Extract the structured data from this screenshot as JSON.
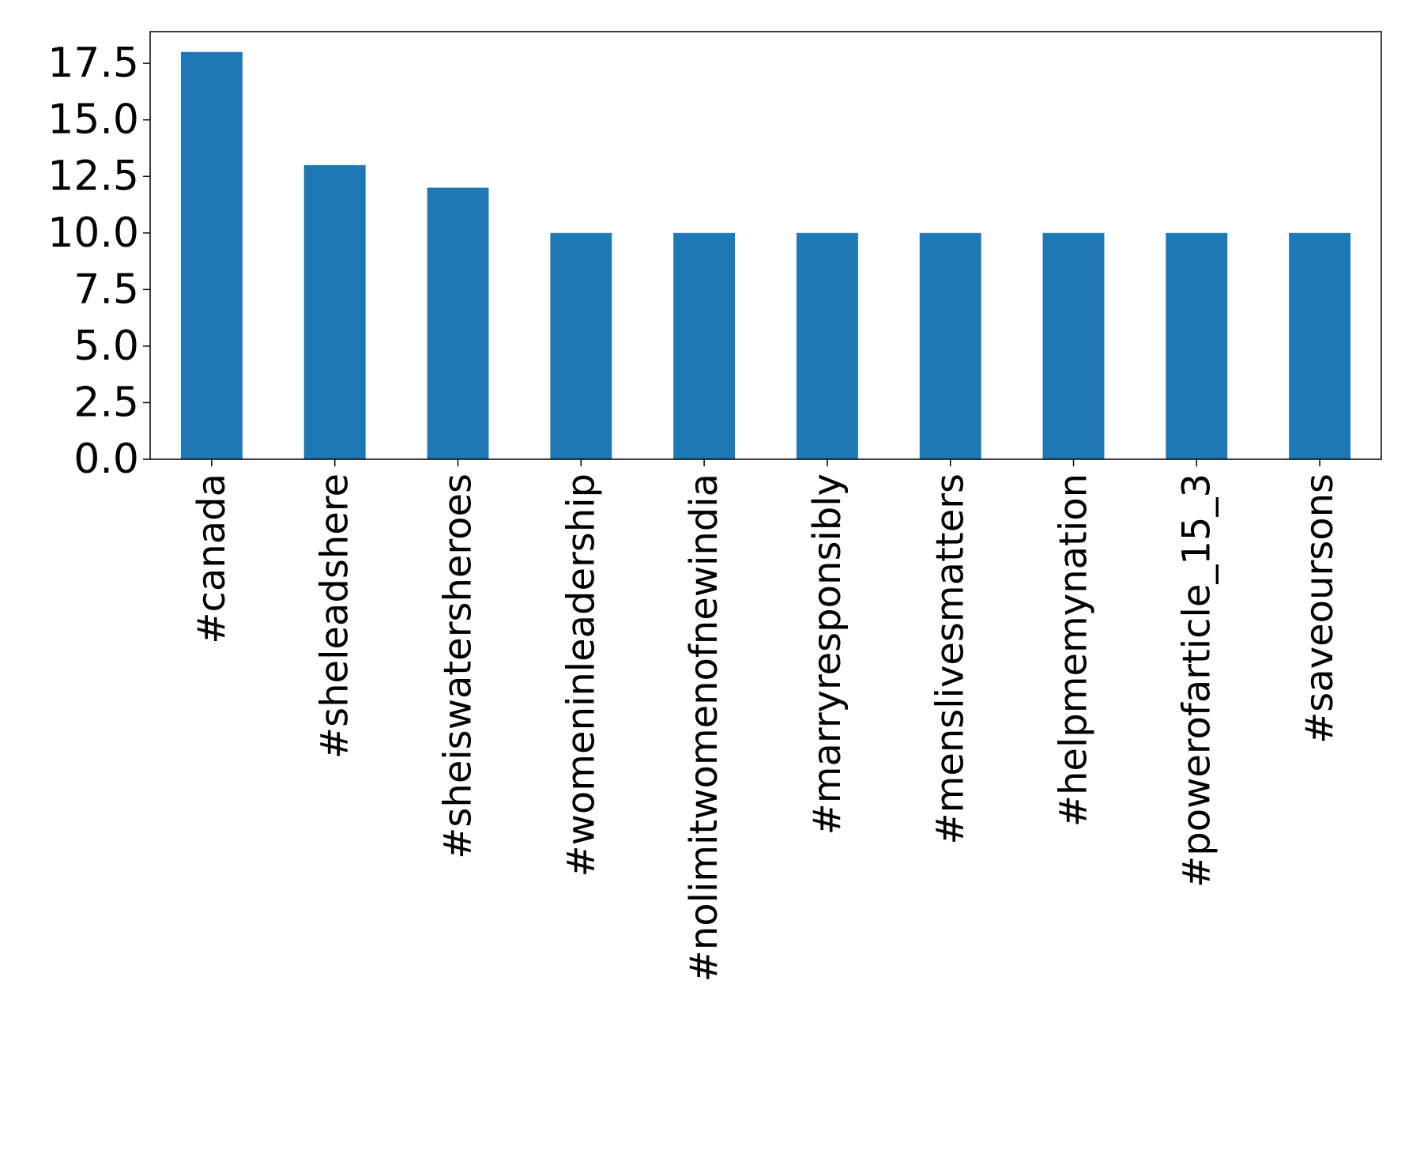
{
  "chart_data": {
    "type": "bar",
    "title": "",
    "xlabel": "",
    "ylabel": "",
    "categories": [
      "#canada",
      "#sheleadshere",
      "#sheiswatersheroes",
      "#womeninleadership",
      "#nolimitwomenofnewindia",
      "#marryresponsibly",
      "#menslivesmatters",
      "#helpmemynation",
      "#powerofarticle_15_3",
      "#saveoursons"
    ],
    "values": [
      18,
      13,
      12,
      10,
      10,
      10,
      10,
      10,
      10,
      10
    ],
    "ylim": [
      0,
      18.9
    ],
    "yticks": [
      0.0,
      2.5,
      5.0,
      7.5,
      10.0,
      12.5,
      15.0,
      17.5
    ],
    "ytick_labels": [
      "0.0",
      "2.5",
      "5.0",
      "7.5",
      "10.0",
      "12.5",
      "15.0",
      "17.5"
    ],
    "bar_color": "#1f77b4",
    "grid": false,
    "legend": "none"
  }
}
